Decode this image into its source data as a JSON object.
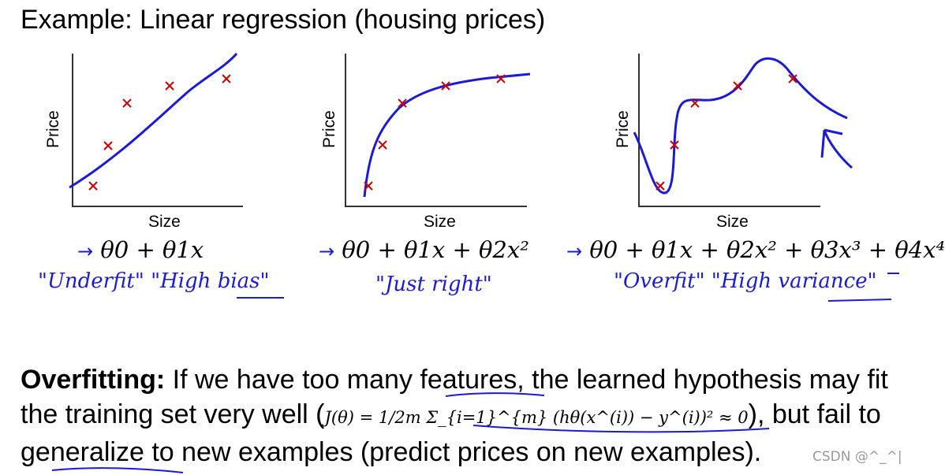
{
  "title": "Example: Linear regression (housing prices)",
  "axes": {
    "x_label": "Size",
    "y_label": "Price"
  },
  "panels": [
    {
      "hypothesis": "θ0 + θ1x",
      "annotation": "\"Underfit\"  \"High bias\""
    },
    {
      "hypothesis": "θ0 + θ1x + θ2x²",
      "annotation": "\"Just right\""
    },
    {
      "hypothesis": "θ0 + θ1x + θ2x² + θ3x³ + θ4x⁴",
      "annotation": "\"Overfit\"  \"High variance\""
    }
  ],
  "paragraph": {
    "bold_term": "Overfitting:",
    "text_1": " If we have too many features, the learned hypothesis may fit the training set very well (",
    "equation": "J(θ) = 1/2m Σ_{i=1}^{m} (hθ(x^(i)) − y^(i))² ≈ 0",
    "text_2": "), but fail to generalize to new examples (predict prices on new examples)."
  },
  "watermark": "CSDN @^_^|",
  "colors": {
    "curve": "#1a1ad8",
    "data_point": "#cc0000",
    "axis": "#333333"
  }
}
